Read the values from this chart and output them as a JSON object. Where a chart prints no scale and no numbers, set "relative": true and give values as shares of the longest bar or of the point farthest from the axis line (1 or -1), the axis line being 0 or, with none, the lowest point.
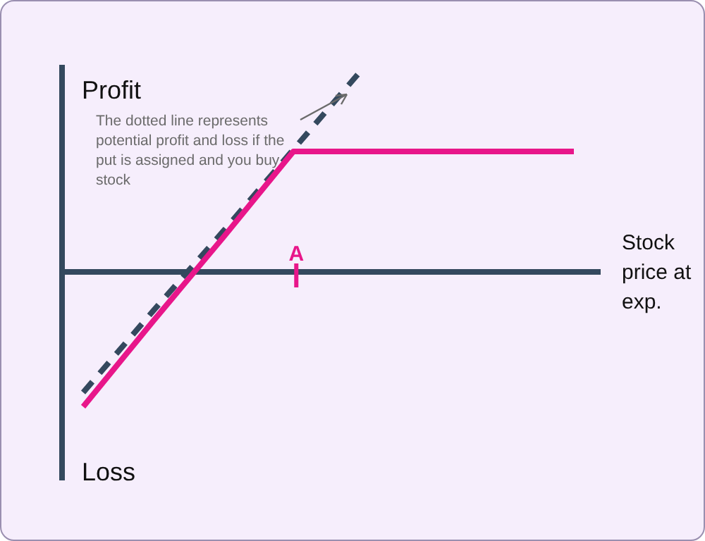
{
  "chart_data": {
    "type": "line",
    "relative": true,
    "categories": [
      null,
      null,
      null,
      null,
      null,
      null,
      null,
      null
    ],
    "series": [
      {
        "color": "#e8168a",
        "values": [
          -0.66,
          -0.24,
          0.17,
          0.59,
          0.59,
          0.59,
          0.59,
          0.59
        ],
        "line_style": "solid"
      },
      {
        "color": "#34495e",
        "values": [
          -0.59,
          -0.19,
          0.2,
          0.6,
          1.0,
          null,
          null,
          null
        ],
        "line_style": "dashed"
      }
    ],
    "xlabel": "Stock price at exp.",
    "annotations": [
      "Profit",
      "Loss",
      "The dotted line represents potential profit and loss if the put is assigned and you buy stock",
      "A"
    ],
    "marker": "none",
    "legend": false
  }
}
